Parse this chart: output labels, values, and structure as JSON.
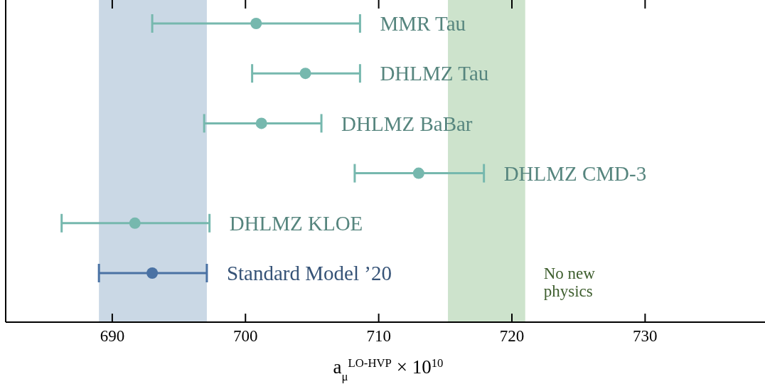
{
  "chart_data": {
    "type": "scatter",
    "orientation": "horizontal",
    "marker": "circle",
    "categories": [
      null,
      null,
      null,
      null,
      null,
      null
    ],
    "xlabel": "a$_{μ}$$^{LO-HVP}$ × 10$^{10}$",
    "xlim": [
      682,
      739
    ],
    "xticks": [
      690,
      700,
      710,
      720,
      730
    ],
    "series": [
      {
        "name": "MMR Tau",
        "color": "#76b8ae",
        "values": [
          700.8,
          null,
          null,
          null,
          null,
          null
        ],
        "errors": [
          [
            693.0,
            708.6
          ],
          null,
          null,
          null,
          null,
          null
        ]
      },
      {
        "name": "DHLMZ Tau",
        "color": "#76b8ae",
        "values": [
          null,
          704.5,
          null,
          null,
          null,
          null
        ],
        "errors": [
          null,
          [
            700.5,
            708.6
          ],
          null,
          null,
          null,
          null
        ]
      },
      {
        "name": "DHLMZ BaBar",
        "color": "#76b8ae",
        "values": [
          null,
          null,
          701.2,
          null,
          null,
          null
        ],
        "errors": [
          null,
          null,
          [
            696.9,
            705.7
          ],
          null,
          null,
          null
        ]
      },
      {
        "name": "DHLMZ CMD-3",
        "color": "#76b8ae",
        "values": [
          null,
          null,
          null,
          713.0,
          null,
          null
        ],
        "errors": [
          null,
          null,
          null,
          [
            708.2,
            717.9
          ],
          null,
          null
        ]
      },
      {
        "name": "DHLMZ KLOE",
        "color": "#76b8ae",
        "values": [
          null,
          null,
          null,
          null,
          691.7,
          null
        ],
        "errors": [
          null,
          null,
          null,
          null,
          [
            686.2,
            697.3
          ],
          null
        ]
      },
      {
        "name": "Standard Model ’20",
        "color": "#4a72a4",
        "values": [
          null,
          null,
          null,
          null,
          null,
          693.0
        ],
        "errors": [
          null,
          null,
          null,
          null,
          null,
          [
            689.0,
            697.1
          ]
        ]
      }
    ],
    "bands": [
      {
        "axis": "x",
        "from": 689.0,
        "to": 697.1,
        "color": "#cad8e5"
      },
      {
        "axis": "x",
        "from": 715.2,
        "to": 721.0,
        "color": "#cde3cc",
        "label": "No new physics"
      }
    ]
  }
}
